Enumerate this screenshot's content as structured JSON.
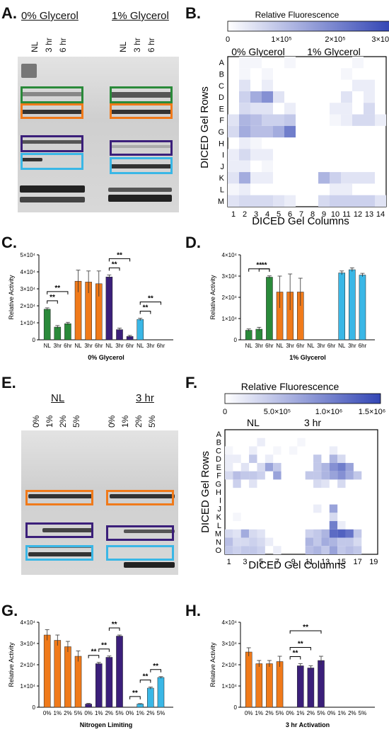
{
  "colors": {
    "green": "#2a8a3a",
    "orange": "#f07a1a",
    "purple": "#3b1f7a",
    "cyan": "#3ab7e6",
    "heat_hi": "#3346b5"
  },
  "panels": {
    "A": "A.",
    "B": "B.",
    "C": "C.",
    "D": "D.",
    "E": "E.",
    "F": "F.",
    "G": "G.",
    "H": "H."
  },
  "panelA": {
    "cond1": "0% Glycerol",
    "cond2": "1% Glycerol",
    "lanes": [
      "NL",
      "3 hr",
      "6 hr"
    ]
  },
  "panelE": {
    "cond1": "NL",
    "cond2": "3 hr",
    "lanes": [
      "0%",
      "1%",
      "2%",
      "5%"
    ]
  },
  "panelB": {
    "title": "Relative Fluorescence",
    "scale": [
      "0",
      "1×10⁵",
      "2×10⁵",
      "3×10⁵"
    ],
    "group1": "0% Glycerol",
    "group2": "1% Glycerol",
    "ylabel": "DICED Gel Rows",
    "xlabel": "DICED Gel Columns",
    "rows": [
      "A",
      "B",
      "C",
      "D",
      "E",
      "F",
      "G",
      "H",
      "I",
      "J",
      "K",
      "L",
      "M"
    ],
    "cols": [
      "1",
      "2",
      "3",
      "4",
      "5",
      "6",
      "7",
      "8",
      "9",
      "10",
      "11",
      "12",
      "13",
      "14"
    ]
  },
  "panelF": {
    "title": "Relative Fluorescence",
    "scale": [
      "0",
      "5.0×10⁵",
      "1.0×10⁶",
      "1.5×10⁶"
    ],
    "group1": "NL",
    "group2": "3 hr",
    "ylabel": "DICED Gel Rows",
    "xlabel": "DICED Gel Columns",
    "rows": [
      "A",
      "B",
      "C",
      "D",
      "E",
      "F",
      "G",
      "H",
      "I",
      "J",
      "K",
      "L",
      "M",
      "N",
      "O"
    ],
    "col_ticks": [
      "1",
      "3",
      "5",
      "7",
      "9",
      "11",
      "13",
      "15",
      "17",
      "19"
    ]
  },
  "chart_data": [
    {
      "id": "C",
      "type": "bar",
      "xlabel": "0% Glycerol",
      "ylabel": "Relative Activity",
      "yticks": [
        "0",
        "1×10⁴",
        "2×10⁴",
        "3×10⁴",
        "4×10⁴",
        "5×10⁴"
      ],
      "ylim": [
        0,
        50000
      ],
      "categories": [
        "NL",
        "3hr",
        "6hr",
        "NL",
        "3hr",
        "6hr",
        "NL",
        "3hr",
        "6hr",
        "NL",
        "3hr",
        "6hr"
      ],
      "colors": [
        "green",
        "green",
        "green",
        "orange",
        "orange",
        "orange",
        "purple",
        "purple",
        "purple",
        "cyan",
        "cyan",
        "cyan"
      ],
      "values": [
        18000,
        7500,
        9500,
        34500,
        34000,
        33000,
        37000,
        6000,
        2000,
        12000,
        0,
        0
      ],
      "errors": [
        800,
        900,
        800,
        6500,
        6500,
        7500,
        1200,
        900,
        600,
        700,
        0,
        0
      ],
      "sig": [
        {
          "from": 0,
          "to": 1,
          "label": "**"
        },
        {
          "from": 0,
          "to": 2,
          "label": "**"
        },
        {
          "from": 6,
          "to": 7,
          "label": "**"
        },
        {
          "from": 6,
          "to": 8,
          "label": "**"
        },
        {
          "from": 9,
          "to": 10,
          "label": "**"
        },
        {
          "from": 9,
          "to": 11,
          "label": "**"
        }
      ]
    },
    {
      "id": "D",
      "type": "bar",
      "xlabel": "1% Glycerol",
      "ylabel": "Relative Activity",
      "yticks": [
        "0",
        "1×10⁴",
        "2×10⁴",
        "3×10⁴",
        "4×10⁴"
      ],
      "ylim": [
        0,
        40000
      ],
      "categories": [
        "NL",
        "3hr",
        "6hr",
        "NL",
        "3hr",
        "6hr",
        "NL",
        "3hr",
        "6hr",
        "NL",
        "3hr",
        "6hr"
      ],
      "colors": [
        "green",
        "green",
        "green",
        "orange",
        "orange",
        "orange",
        "purple",
        "purple",
        "purple",
        "cyan",
        "cyan",
        "cyan"
      ],
      "values": [
        4500,
        5000,
        29500,
        22500,
        22500,
        22500,
        0,
        0,
        0,
        31500,
        33000,
        30500
      ],
      "errors": [
        600,
        900,
        600,
        7500,
        8500,
        6500,
        0,
        0,
        0,
        900,
        900,
        800
      ],
      "sig": [
        {
          "from": 0,
          "to": 2,
          "label": "**"
        },
        {
          "from": 1,
          "to": 2,
          "label": "**"
        }
      ]
    },
    {
      "id": "G",
      "type": "bar",
      "xlabel": "Nitrogen Limiting",
      "ylabel": "Relative Activity",
      "yticks": [
        "0",
        "1×10⁴",
        "2×10⁴",
        "3×10⁴",
        "4×10⁴"
      ],
      "ylim": [
        0,
        40000
      ],
      "categories": [
        "0%",
        "1%",
        "2%",
        "5%",
        "0%",
        "1%",
        "2%",
        "5%",
        "0%",
        "1%",
        "2%",
        "5%"
      ],
      "colors": [
        "orange",
        "orange",
        "orange",
        "orange",
        "purple",
        "purple",
        "purple",
        "purple",
        "cyan",
        "cyan",
        "cyan",
        "cyan"
      ],
      "values": [
        34000,
        31500,
        28500,
        24000,
        1500,
        20500,
        23500,
        33500,
        0,
        1500,
        9000,
        14000
      ],
      "errors": [
        2500,
        2500,
        2500,
        2500,
        300,
        600,
        600,
        500,
        0,
        200,
        500,
        400
      ],
      "sig": [
        {
          "from": 4,
          "to": 5,
          "label": "**"
        },
        {
          "from": 5,
          "to": 6,
          "label": "**"
        },
        {
          "from": 6,
          "to": 7,
          "label": "**"
        },
        {
          "from": 8,
          "to": 9,
          "label": "**"
        },
        {
          "from": 9,
          "to": 10,
          "label": "**"
        },
        {
          "from": 10,
          "to": 11,
          "label": "**"
        }
      ]
    },
    {
      "id": "H",
      "type": "bar",
      "xlabel": "3 hr Activation",
      "ylabel": "Relative Activity",
      "yticks": [
        "0",
        "1×10⁴",
        "2×10⁴",
        "3×10⁴",
        "4×10⁴"
      ],
      "ylim": [
        0,
        40000
      ],
      "categories": [
        "0%",
        "1%",
        "2%",
        "5%",
        "0%",
        "1%",
        "2%",
        "5%",
        "0%",
        "1%",
        "2%",
        "5%"
      ],
      "colors": [
        "orange",
        "orange",
        "orange",
        "orange",
        "purple",
        "purple",
        "purple",
        "purple",
        "cyan",
        "cyan",
        "cyan",
        "cyan"
      ],
      "values": [
        26000,
        20500,
        20500,
        21500,
        0,
        19500,
        18500,
        22000,
        0,
        0,
        0,
        0
      ],
      "errors": [
        2000,
        1500,
        1500,
        2500,
        0,
        1000,
        1000,
        2000,
        0,
        0,
        0,
        0
      ],
      "sig": [
        {
          "from": 4,
          "to": 5,
          "label": "**"
        },
        {
          "from": 4,
          "to": 6,
          "label": "**"
        },
        {
          "from": 4,
          "to": 7,
          "label": "**"
        }
      ]
    },
    {
      "id": "B",
      "type": "heatmap",
      "rows": 13,
      "cols": 14,
      "max": 300000,
      "cells": [
        [
          0,
          1,
          0.05
        ],
        [
          0,
          2,
          0.05
        ],
        [
          0,
          5,
          0.05
        ],
        [
          0,
          11,
          0.05
        ],
        [
          1,
          1,
          0.05
        ],
        [
          1,
          3,
          0.05
        ],
        [
          1,
          10,
          0.05
        ],
        [
          2,
          1,
          0.15
        ],
        [
          2,
          3,
          0.1
        ],
        [
          2,
          11,
          0.1
        ],
        [
          2,
          12,
          0.1
        ],
        [
          3,
          1,
          0.25
        ],
        [
          3,
          2,
          0.45
        ],
        [
          3,
          3,
          0.6
        ],
        [
          3,
          4,
          0.15
        ],
        [
          3,
          10,
          0.15
        ],
        [
          3,
          12,
          0.1
        ],
        [
          4,
          1,
          0.2
        ],
        [
          4,
          2,
          0.15
        ],
        [
          4,
          3,
          0.15
        ],
        [
          4,
          5,
          0.1
        ],
        [
          4,
          9,
          0.1
        ],
        [
          4,
          10,
          0.1
        ],
        [
          4,
          12,
          0.2
        ],
        [
          5,
          0,
          0.15
        ],
        [
          5,
          1,
          0.4
        ],
        [
          5,
          2,
          0.35
        ],
        [
          5,
          3,
          0.25
        ],
        [
          5,
          4,
          0.25
        ],
        [
          5,
          5,
          0.3
        ],
        [
          5,
          9,
          0.05
        ],
        [
          5,
          10,
          0.1
        ],
        [
          5,
          11,
          0.2
        ],
        [
          5,
          12,
          0.2
        ],
        [
          5,
          13,
          0.1
        ],
        [
          6,
          0,
          0.2
        ],
        [
          6,
          1,
          0.45
        ],
        [
          6,
          2,
          0.35
        ],
        [
          6,
          3,
          0.35
        ],
        [
          6,
          4,
          0.45
        ],
        [
          6,
          5,
          0.7
        ],
        [
          7,
          1,
          0.1
        ],
        [
          7,
          2,
          0.05
        ],
        [
          8,
          0,
          0.1
        ],
        [
          8,
          1,
          0.2
        ],
        [
          8,
          2,
          0.1
        ],
        [
          8,
          3,
          0.1
        ],
        [
          9,
          0,
          0.1
        ],
        [
          9,
          1,
          0.1
        ],
        [
          9,
          3,
          0.05
        ],
        [
          10,
          0,
          0.15
        ],
        [
          10,
          1,
          0.45
        ],
        [
          10,
          2,
          0.1
        ],
        [
          10,
          3,
          0.1
        ],
        [
          10,
          8,
          0.4
        ],
        [
          10,
          9,
          0.25
        ],
        [
          10,
          10,
          0.15
        ],
        [
          10,
          11,
          0.15
        ],
        [
          10,
          12,
          0.15
        ],
        [
          11,
          0,
          0.05
        ],
        [
          11,
          1,
          0.1
        ],
        [
          11,
          9,
          0.1
        ],
        [
          11,
          10,
          0.1
        ],
        [
          12,
          0,
          0.15
        ],
        [
          12,
          1,
          0.2
        ],
        [
          12,
          2,
          0.2
        ],
        [
          12,
          3,
          0.2
        ],
        [
          12,
          4,
          0.15
        ],
        [
          12,
          5,
          0.1
        ],
        [
          12,
          8,
          0.2
        ],
        [
          12,
          9,
          0.25
        ],
        [
          12,
          10,
          0.25
        ],
        [
          12,
          11,
          0.25
        ],
        [
          12,
          12,
          0.25
        ],
        [
          12,
          13,
          0.15
        ]
      ]
    },
    {
      "id": "F",
      "type": "heatmap",
      "rows": 15,
      "cols": 19,
      "max": 1500000,
      "cells": [
        [
          1,
          4,
          0.1
        ],
        [
          1,
          9,
          0.05
        ],
        [
          2,
          0,
          0.05
        ],
        [
          2,
          3,
          0.1
        ],
        [
          2,
          6,
          0.05
        ],
        [
          2,
          8,
          0.05
        ],
        [
          2,
          13,
          0.1
        ],
        [
          3,
          0,
          0.1
        ],
        [
          3,
          1,
          0.1
        ],
        [
          3,
          3,
          0.3
        ],
        [
          3,
          5,
          0.1
        ],
        [
          3,
          11,
          0.3
        ],
        [
          3,
          13,
          0.4
        ],
        [
          3,
          14,
          0.2
        ],
        [
          4,
          0,
          0.1
        ],
        [
          4,
          2,
          0.15
        ],
        [
          4,
          4,
          0.2
        ],
        [
          4,
          5,
          0.5
        ],
        [
          4,
          6,
          0.3
        ],
        [
          4,
          11,
          0.3
        ],
        [
          4,
          12,
          0.4
        ],
        [
          4,
          13,
          0.6
        ],
        [
          4,
          14,
          0.7
        ],
        [
          4,
          15,
          0.5
        ],
        [
          5,
          0,
          0.2
        ],
        [
          5,
          1,
          0.35
        ],
        [
          5,
          2,
          0.3
        ],
        [
          5,
          3,
          0.3
        ],
        [
          5,
          4,
          0.25
        ],
        [
          5,
          6,
          0.5
        ],
        [
          5,
          10,
          0.3
        ],
        [
          5,
          11,
          0.3
        ],
        [
          5,
          12,
          0.4
        ],
        [
          5,
          13,
          0.5
        ],
        [
          5,
          14,
          0.6
        ],
        [
          5,
          15,
          0.45
        ],
        [
          5,
          16,
          0.3
        ],
        [
          6,
          1,
          0.25
        ],
        [
          6,
          3,
          0.15
        ],
        [
          6,
          11,
          0.2
        ],
        [
          6,
          12,
          0.15
        ],
        [
          6,
          14,
          0.2
        ],
        [
          9,
          13,
          0.5
        ],
        [
          9,
          11,
          0.1
        ],
        [
          10,
          13,
          0.2
        ],
        [
          10,
          1,
          0.05
        ],
        [
          11,
          13,
          0.7
        ],
        [
          11,
          14,
          0.1
        ],
        [
          12,
          0,
          0.2
        ],
        [
          12,
          1,
          0.15
        ],
        [
          12,
          2,
          0.45
        ],
        [
          12,
          3,
          0.2
        ],
        [
          12,
          4,
          0.15
        ],
        [
          12,
          10,
          0.25
        ],
        [
          12,
          11,
          0.3
        ],
        [
          12,
          12,
          0.4
        ],
        [
          12,
          13,
          0.8
        ],
        [
          12,
          14,
          0.85
        ],
        [
          12,
          15,
          0.75
        ],
        [
          12,
          16,
          0.3
        ],
        [
          13,
          0,
          0.35
        ],
        [
          13,
          1,
          0.2
        ],
        [
          13,
          2,
          0.2
        ],
        [
          13,
          3,
          0.25
        ],
        [
          13,
          4,
          0.2
        ],
        [
          13,
          5,
          0.1
        ],
        [
          13,
          10,
          0.4
        ],
        [
          13,
          11,
          0.3
        ],
        [
          13,
          12,
          0.45
        ],
        [
          13,
          13,
          0.4
        ],
        [
          13,
          14,
          0.3
        ],
        [
          13,
          15,
          0.3
        ],
        [
          13,
          16,
          0.2
        ],
        [
          14,
          0,
          0.3
        ],
        [
          14,
          1,
          0.25
        ],
        [
          14,
          2,
          0.3
        ],
        [
          14,
          3,
          0.3
        ],
        [
          14,
          4,
          0.25
        ],
        [
          14,
          6,
          0.1
        ],
        [
          14,
          10,
          0.35
        ],
        [
          14,
          11,
          0.4
        ],
        [
          14,
          12,
          0.3
        ],
        [
          14,
          13,
          0.5
        ],
        [
          14,
          14,
          0.3
        ],
        [
          14,
          15,
          0.35
        ],
        [
          14,
          16,
          0.3
        ]
      ]
    }
  ]
}
